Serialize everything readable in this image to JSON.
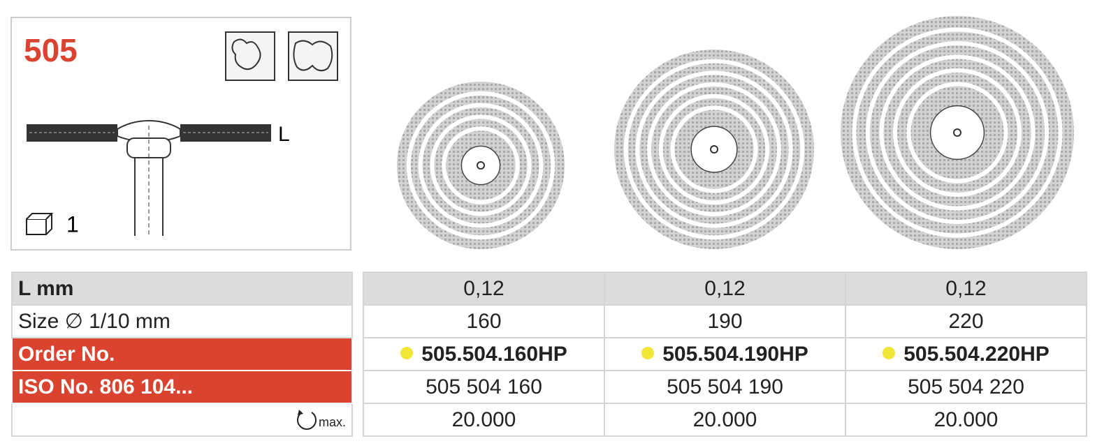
{
  "header": {
    "model": "505",
    "dimension_label": "L",
    "pack_quantity": "1"
  },
  "table": {
    "row_labels": [
      "L mm",
      "Size ∅ 1/10 mm",
      "Order No.",
      "ISO No. 806 104..."
    ],
    "rpm_label": "max.",
    "columns": [
      {
        "l_mm": "0,12",
        "size": "160",
        "order_no": "505.504.160HP",
        "iso_no": "505 504 160",
        "rpm": "20.000"
      },
      {
        "l_mm": "0,12",
        "size": "190",
        "order_no": "505.504.190HP",
        "iso_no": "505 504 190",
        "rpm": "20.000"
      },
      {
        "l_mm": "0,12",
        "size": "220",
        "order_no": "505.504.220HP",
        "iso_no": "505 504 220",
        "rpm": "20.000"
      }
    ]
  }
}
